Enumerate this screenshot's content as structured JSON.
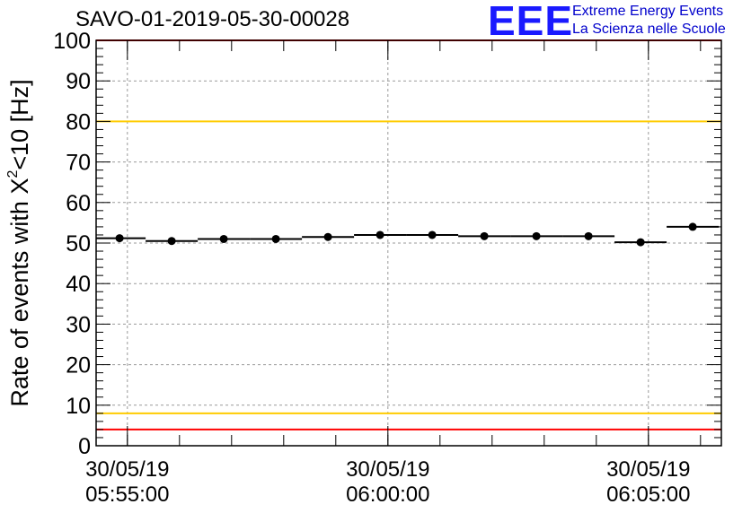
{
  "chart_data": {
    "type": "scatter",
    "title": "SAVO-01-2019-05-30-00028",
    "ylabel_prefix": "Rate of events with X",
    "ylabel_sup": "2",
    "ylabel_suffix": "<10 [Hz]",
    "xlabel": "",
    "ylim": [
      0,
      100
    ],
    "yticks": [
      0,
      10,
      20,
      30,
      40,
      50,
      60,
      70,
      80,
      90,
      100
    ],
    "x_unit": "minutes after 05:55:00",
    "xlim": [
      -0.6,
      11.4
    ],
    "xticks": [
      {
        "x": 0,
        "date": "30/05/19",
        "time": "05:55:00"
      },
      {
        "x": 5,
        "date": "30/05/19",
        "time": "06:00:00"
      },
      {
        "x": 10,
        "date": "30/05/19",
        "time": "06:05:00"
      }
    ],
    "series": [
      {
        "name": "rate",
        "points": [
          {
            "x": -0.15,
            "y": 51.2,
            "xerr": 0.5
          },
          {
            "x": 0.85,
            "y": 50.5,
            "xerr": 0.5
          },
          {
            "x": 1.85,
            "y": 51.0,
            "xerr": 0.5
          },
          {
            "x": 2.85,
            "y": 51.0,
            "xerr": 0.5
          },
          {
            "x": 3.85,
            "y": 51.5,
            "xerr": 0.5
          },
          {
            "x": 4.85,
            "y": 52.0,
            "xerr": 0.5
          },
          {
            "x": 5.85,
            "y": 52.0,
            "xerr": 0.5
          },
          {
            "x": 6.85,
            "y": 51.7,
            "xerr": 0.5
          },
          {
            "x": 7.85,
            "y": 51.7,
            "xerr": 0.5
          },
          {
            "x": 8.85,
            "y": 51.7,
            "xerr": 0.5
          },
          {
            "x": 9.85,
            "y": 50.2,
            "xerr": 0.5
          },
          {
            "x": 10.85,
            "y": 54.0,
            "xerr": 0.5
          }
        ]
      }
    ],
    "reference_lines": [
      {
        "y": 100,
        "color": "#ff0000"
      },
      {
        "y": 80,
        "color": "#ffcc00"
      },
      {
        "y": 8,
        "color": "#ffcc00"
      },
      {
        "y": 4,
        "color": "#ff0000"
      }
    ],
    "grid": true
  },
  "logo": {
    "text": "EEE",
    "line1": "Extreme Energy Events",
    "line2": "La Scienza nelle Scuole"
  }
}
